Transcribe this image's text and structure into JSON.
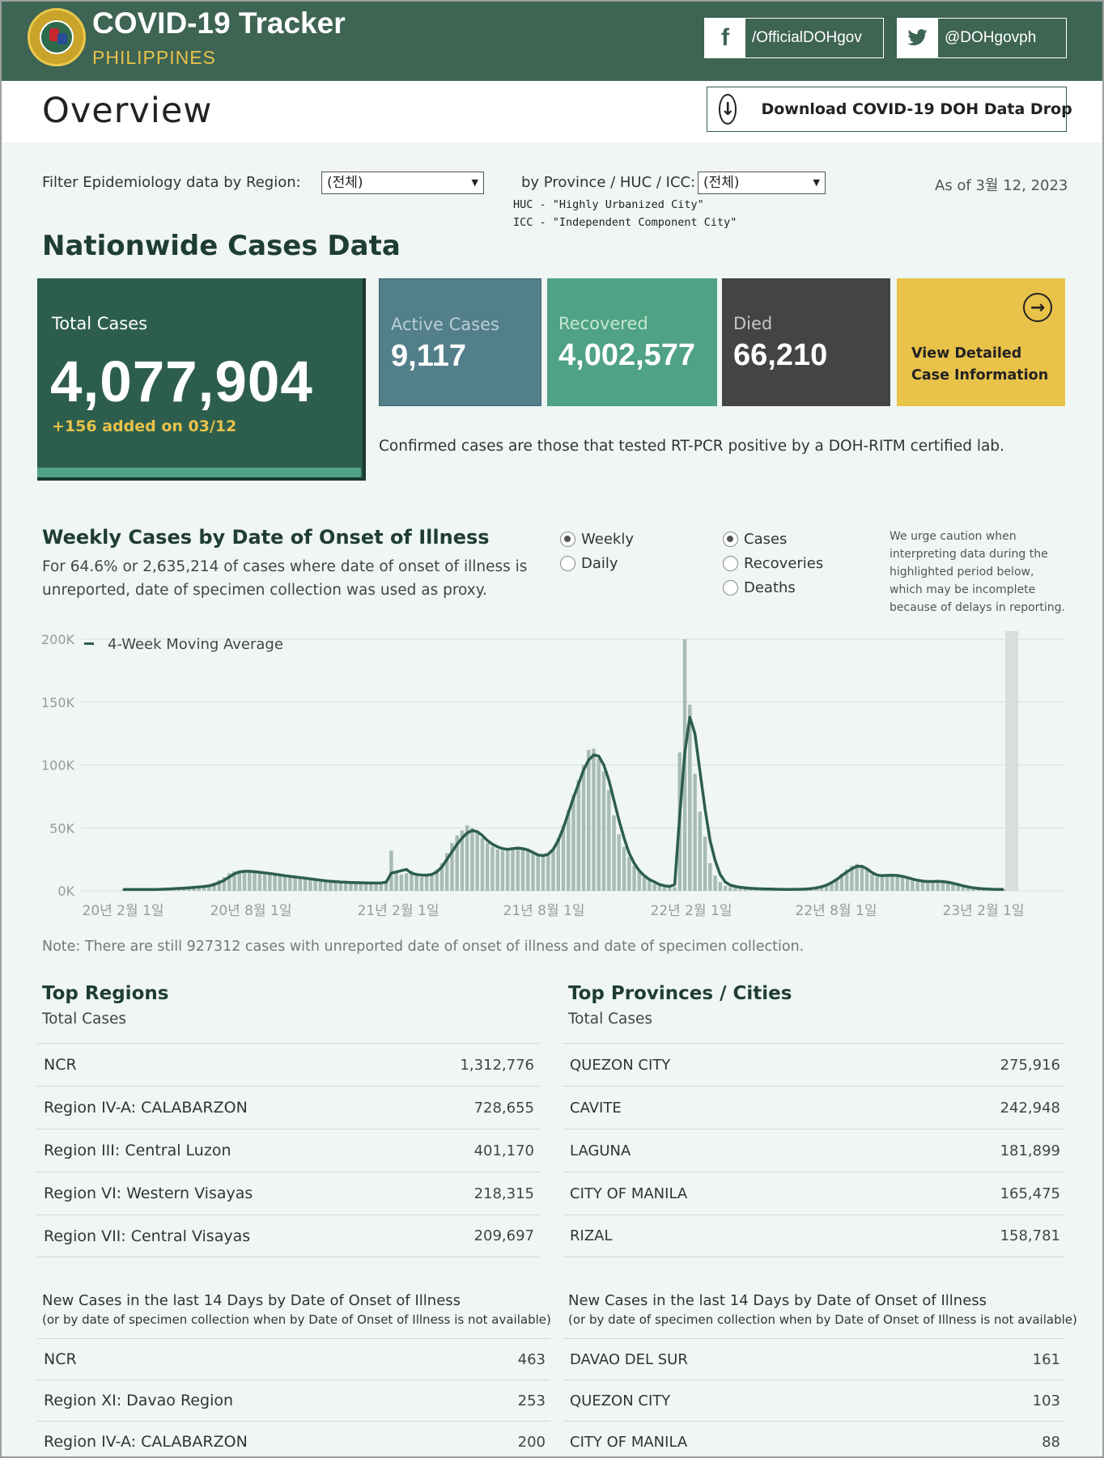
{
  "header": {
    "title": "COVID-19 Tracker",
    "subtitle": "PHILIPPINES",
    "facebook": "/OfficialDOHgov",
    "twitter": "@DOHgovph",
    "facebook_icon": "facebook-icon",
    "twitter_icon": "twitter-icon"
  },
  "overview": {
    "title": "Overview",
    "download_label": "Download COVID-19 DOH Data Drop"
  },
  "filters": {
    "region_label": "Filter Epidemiology data by Region:",
    "region_value": "(전체)",
    "province_label": "by Province / HUC / ICC:",
    "province_value": "(전체)",
    "huc_note": "HUC - \"Highly Urbanized City\"",
    "icc_note": "ICC - \"Independent Component City\"",
    "as_of": "As of 3월 12, 2023"
  },
  "nationwide": {
    "title": "Nationwide Cases Data",
    "total_label": "Total Cases",
    "total_value": "4,077,904",
    "total_added": "+156 added on 03/12",
    "active_label": "Active Cases",
    "active_value": "9,117",
    "recovered_label": "Recovered",
    "recovered_value": "4,002,577",
    "died_label": "Died",
    "died_value": "66,210",
    "view_label": "View Detailed Case Information",
    "note": "Confirmed cases are those that tested RT-PCR positive by a DOH-RITM certified lab."
  },
  "weekly": {
    "title": "Weekly Cases by Date of Onset of Illness",
    "subtitle": "For 64.6% or 2,635,214 of cases where date of onset of illness is unreported, date of specimen collection was used as proxy.",
    "period_options": [
      "Weekly",
      "Daily"
    ],
    "period_selected": "Weekly",
    "metric_options": [
      "Cases",
      "Recoveries",
      "Deaths"
    ],
    "metric_selected": "Cases",
    "caution": "We urge caution when interpreting data during the highlighted period below, which may be incomplete because of delays in reporting.",
    "note": "Note: There are still 927312 cases with unreported date of onset of illness and date of specimen collection."
  },
  "chart_data": {
    "type": "bar",
    "ylim": [
      0,
      200000
    ],
    "y_ticks": [
      "0K",
      "50K",
      "100K",
      "150K",
      "200K"
    ],
    "x_ticks": [
      "20년 2월 1일",
      "20년 8월 1일",
      "21년 2월 1일",
      "21년 8월 1일",
      "22년 2월 1일",
      "22년 8월 1일",
      "23년 2월 1일"
    ],
    "legend": [
      "4-Week Moving Average"
    ],
    "series": [
      {
        "name": "Weekly cases",
        "values": [
          1000,
          1000,
          1000,
          1000,
          1000,
          1000,
          1200,
          1400,
          1600,
          1800,
          2000,
          2200,
          2500,
          2800,
          3200,
          3600,
          4200,
          5000,
          6500,
          8500,
          11000,
          14000,
          15500,
          16000,
          16500,
          16000,
          15500,
          15000,
          14500,
          14000,
          13000,
          12500,
          12000,
          11500,
          11000,
          10500,
          10000,
          9500,
          9000,
          8500,
          8000,
          7500,
          7200,
          7000,
          6800,
          6600,
          6500,
          6400,
          6300,
          6200,
          6200,
          6500,
          8000,
          32000,
          14000,
          13000,
          14000,
          16000,
          12000,
          11000,
          12000,
          13000,
          17000,
          22000,
          30000,
          38000,
          44000,
          48000,
          52000,
          50000,
          46000,
          42000,
          38000,
          35000,
          33000,
          32000,
          33000,
          34000,
          35000,
          34000,
          32000,
          30000,
          28000,
          27000,
          28000,
          33000,
          42000,
          52000,
          64000,
          76000,
          88000,
          100000,
          112000,
          113000,
          105000,
          95000,
          80000,
          60000,
          45000,
          35000,
          27000,
          20000,
          15000,
          11000,
          8000,
          5500,
          4000,
          3000,
          2500,
          3000,
          110000,
          200000,
          148000,
          93000,
          63000,
          43000,
          22000,
          12000,
          7000,
          4000,
          3000,
          2500,
          2000,
          1800,
          1600,
          1500,
          1400,
          1300,
          1200,
          1100,
          1000,
          1000,
          1000,
          1100,
          1200,
          1400,
          1700,
          2200,
          3000,
          4500,
          7000,
          10000,
          13500,
          17000,
          20000,
          21500,
          20000,
          16500,
          13000,
          11000,
          12000,
          13000,
          12500,
          12000,
          11000,
          9500,
          8500,
          7500,
          7000,
          7000,
          7500,
          8000,
          7800,
          7000,
          6000,
          5000,
          4000,
          3000,
          2200,
          1800,
          1500,
          1300,
          1200,
          1100,
          1200
        ]
      },
      {
        "name": "4-Week Moving Average",
        "values": [
          1000,
          1000,
          1000,
          1000,
          1000,
          1000,
          1050,
          1150,
          1300,
          1500,
          1700,
          1900,
          2100,
          2400,
          2700,
          3000,
          3500,
          4000,
          5000,
          6500,
          8500,
          11000,
          13500,
          15000,
          15500,
          15500,
          15200,
          14800,
          14300,
          13800,
          13200,
          12600,
          12000,
          11500,
          11000,
          10500,
          10000,
          9500,
          9000,
          8500,
          8000,
          7600,
          7300,
          7000,
          6800,
          6600,
          6500,
          6400,
          6300,
          6200,
          6200,
          6300,
          6800,
          14000,
          15000,
          16000,
          17000,
          14000,
          13000,
          12500,
          12500,
          13000,
          15000,
          19000,
          25000,
          31000,
          37000,
          42000,
          46000,
          48000,
          47000,
          44000,
          40000,
          37000,
          35000,
          33500,
          33000,
          33500,
          34000,
          33500,
          32500,
          30500,
          28500,
          28000,
          29000,
          33000,
          40000,
          50000,
          62000,
          74000,
          85000,
          96000,
          104000,
          108000,
          107000,
          100000,
          88000,
          72000,
          56000,
          42000,
          30000,
          22000,
          16000,
          12000,
          9000,
          7000,
          5000,
          4000,
          3500,
          5000,
          60000,
          110000,
          138000,
          125000,
          95000,
          65000,
          40000,
          24000,
          13000,
          7000,
          4500,
          3500,
          2800,
          2300,
          2000,
          1800,
          1600,
          1500,
          1400,
          1300,
          1200,
          1150,
          1150,
          1200,
          1300,
          1500,
          1800,
          2300,
          3200,
          4500,
          6500,
          9000,
          12000,
          15000,
          17500,
          19500,
          19500,
          17500,
          14500,
          12500,
          12000,
          12300,
          12400,
          12200,
          11500,
          10500,
          9400,
          8400,
          7700,
          7400,
          7400,
          7500,
          7300,
          6800,
          6000,
          5000,
          4000,
          3100,
          2400,
          1900,
          1600,
          1400,
          1250,
          1150,
          1150
        ]
      }
    ]
  },
  "top_regions": {
    "title": "Top Regions",
    "subtitle": "Total Cases",
    "rows": [
      {
        "name": "NCR",
        "value": "1,312,776"
      },
      {
        "name": "Region IV-A: CALABARZON",
        "value": "728,655"
      },
      {
        "name": "Region III: Central Luzon",
        "value": "401,170"
      },
      {
        "name": "Region VI: Western Visayas",
        "value": "218,315"
      },
      {
        "name": "Region VII: Central Visayas",
        "value": "209,697"
      }
    ]
  },
  "top_provinces": {
    "title": "Top Provinces / Cities",
    "subtitle": "Total Cases",
    "rows": [
      {
        "name": "QUEZON CITY",
        "value": "275,916"
      },
      {
        "name": "CAVITE",
        "value": "242,948"
      },
      {
        "name": "LAGUNA",
        "value": "181,899"
      },
      {
        "name": "CITY OF MANILA",
        "value": "165,475"
      },
      {
        "name": "RIZAL",
        "value": "158,781"
      }
    ]
  },
  "new_regions": {
    "title": "New Cases in the last 14 Days by Date of Onset of Illness",
    "subtitle": "(or by date of specimen collection when by Date of Onset of Illness is not available)",
    "rows": [
      {
        "name": "NCR",
        "value": "463"
      },
      {
        "name": "Region XI: Davao Region",
        "value": "253"
      },
      {
        "name": "Region IV-A: CALABARZON",
        "value": "200"
      }
    ]
  },
  "new_provinces": {
    "title": "New Cases in the last 14 Days by Date of Onset of Illness",
    "subtitle": "(or by date of specimen collection when by Date of Onset of Illness is not available)",
    "rows": [
      {
        "name": "DAVAO DEL SUR",
        "value": "161"
      },
      {
        "name": "QUEZON CITY",
        "value": "103"
      },
      {
        "name": "CITY OF MANILA",
        "value": "88"
      }
    ]
  }
}
